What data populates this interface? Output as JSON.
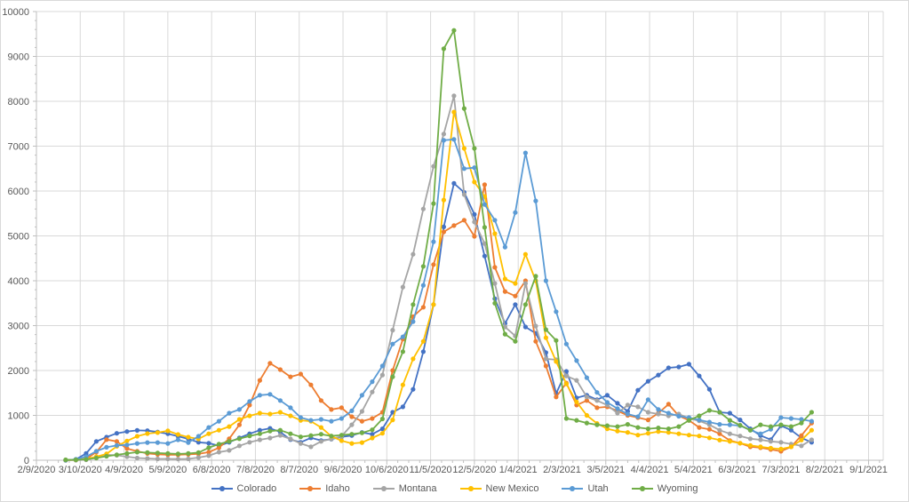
{
  "chart_data": {
    "type": "line",
    "title": "",
    "x": [
      "2/29/2020",
      "3/7/2020",
      "3/14/2020",
      "3/21/2020",
      "3/28/2020",
      "4/4/2020",
      "4/11/2020",
      "4/18/2020",
      "4/25/2020",
      "5/2/2020",
      "5/9/2020",
      "5/16/2020",
      "5/23/2020",
      "5/30/2020",
      "6/6/2020",
      "6/13/2020",
      "6/20/2020",
      "6/27/2020",
      "7/4/2020",
      "7/11/2020",
      "7/18/2020",
      "7/25/2020",
      "8/1/2020",
      "8/8/2020",
      "8/15/2020",
      "8/22/2020",
      "8/29/2020",
      "9/5/2020",
      "9/12/2020",
      "9/19/2020",
      "9/26/2020",
      "10/3/2020",
      "10/10/2020",
      "10/17/2020",
      "10/24/2020",
      "10/31/2020",
      "11/7/2020",
      "11/14/2020",
      "11/21/2020",
      "11/28/2020",
      "12/5/2020",
      "12/12/2020",
      "12/19/2020",
      "12/26/2020",
      "1/2/2021",
      "1/9/2021",
      "1/16/2021",
      "1/23/2021",
      "1/30/2021",
      "2/6/2021",
      "2/13/2021",
      "2/20/2021",
      "2/27/2021",
      "3/6/2021",
      "3/13/2021",
      "3/20/2021",
      "3/27/2021",
      "4/3/2021",
      "4/10/2021",
      "4/17/2021",
      "4/24/2021",
      "5/1/2021",
      "5/8/2021",
      "5/15/2021",
      "5/22/2021",
      "5/29/2021",
      "6/5/2021",
      "6/12/2021",
      "6/19/2021",
      "6/26/2021",
      "7/3/2021",
      "7/10/2021",
      "7/17/2021",
      "7/24/2021"
    ],
    "series": [
      {
        "name": "Colorado",
        "color": "#4472C4",
        "values": [
          0,
          20,
          150,
          420,
          515,
          600,
          640,
          665,
          660,
          630,
          590,
          535,
          475,
          400,
          380,
          320,
          400,
          500,
          590,
          670,
          710,
          630,
          460,
          400,
          500,
          440,
          470,
          520,
          550,
          620,
          580,
          700,
          1070,
          1190,
          1580,
          2420,
          3470,
          5200,
          6170,
          5970,
          5480,
          4550,
          3600,
          3050,
          3470,
          2970,
          2830,
          2400,
          1490,
          1980,
          1390,
          1450,
          1350,
          1450,
          1270,
          1090,
          1560,
          1760,
          1900,
          2060,
          2080,
          2140,
          1880,
          1580,
          1070,
          1050,
          900,
          700,
          550,
          460,
          770,
          670,
          500,
          400
        ]
      },
      {
        "name": "Idaho",
        "color": "#ED7D31",
        "values": [
          0,
          10,
          30,
          180,
          460,
          420,
          260,
          200,
          150,
          130,
          120,
          120,
          130,
          140,
          180,
          280,
          480,
          790,
          1230,
          1780,
          2160,
          2020,
          1860,
          1920,
          1680,
          1330,
          1130,
          1170,
          970,
          870,
          930,
          1070,
          2000,
          2700,
          3200,
          3410,
          4360,
          5090,
          5230,
          5350,
          4990,
          6140,
          4300,
          3760,
          3660,
          4000,
          2650,
          2100,
          1410,
          1720,
          1230,
          1330,
          1170,
          1190,
          1100,
          1000,
          950,
          900,
          1050,
          1250,
          990,
          890,
          730,
          690,
          590,
          440,
          380,
          300,
          280,
          240,
          200,
          300,
          550,
          830
        ]
      },
      {
        "name": "Montana",
        "color": "#A5A5A5",
        "values": [
          0,
          0,
          10,
          60,
          120,
          110,
          80,
          50,
          40,
          30,
          30,
          25,
          30,
          60,
          100,
          180,
          220,
          320,
          400,
          455,
          495,
          555,
          475,
          375,
          300,
          420,
          475,
          535,
          790,
          1090,
          1520,
          1900,
          2900,
          3860,
          4590,
          5600,
          6550,
          7270,
          8120,
          5920,
          5310,
          4830,
          3940,
          2970,
          2770,
          3940,
          2990,
          2260,
          2240,
          1880,
          1780,
          1410,
          1330,
          1230,
          1050,
          1230,
          1190,
          1070,
          1030,
          990,
          1030,
          930,
          880,
          790,
          670,
          590,
          540,
          480,
          455,
          420,
          400,
          360,
          320,
          455
        ]
      },
      {
        "name": "New Mexico",
        "color": "#FFC000",
        "values": [
          0,
          10,
          30,
          80,
          140,
          310,
          430,
          535,
          595,
          615,
          655,
          575,
          515,
          475,
          590,
          670,
          750,
          910,
          990,
          1050,
          1030,
          1070,
          990,
          890,
          870,
          730,
          535,
          435,
          375,
          395,
          495,
          600,
          900,
          1680,
          2260,
          2650,
          3470,
          5800,
          7760,
          6950,
          6200,
          5880,
          5050,
          4040,
          3940,
          4590,
          4000,
          2730,
          2200,
          1700,
          1300,
          1000,
          820,
          700,
          650,
          620,
          560,
          600,
          640,
          620,
          590,
          560,
          540,
          500,
          450,
          420,
          380,
          330,
          300,
          270,
          250,
          300,
          450,
          670
        ]
      },
      {
        "name": "Utah",
        "color": "#5B9BD5",
        "values": [
          0,
          20,
          80,
          200,
          290,
          330,
          340,
          375,
          395,
          395,
          375,
          455,
          395,
          535,
          730,
          870,
          1050,
          1130,
          1310,
          1450,
          1470,
          1330,
          1170,
          950,
          890,
          910,
          870,
          930,
          1100,
          1450,
          1750,
          2100,
          2590,
          2750,
          3090,
          3900,
          4870,
          7130,
          7150,
          6500,
          6520,
          5700,
          5350,
          4750,
          5520,
          6850,
          5780,
          4000,
          3310,
          2590,
          2220,
          1840,
          1510,
          1290,
          1150,
          1030,
          970,
          1350,
          1130,
          1050,
          980,
          950,
          900,
          850,
          800,
          790,
          770,
          670,
          590,
          690,
          950,
          930,
          910,
          870
        ]
      },
      {
        "name": "Wyoming",
        "color": "#70AD47",
        "values": [
          10,
          10,
          20,
          50,
          90,
          120,
          150,
          180,
          170,
          160,
          150,
          140,
          150,
          170,
          280,
          360,
          420,
          480,
          540,
          590,
          650,
          670,
          590,
          520,
          550,
          580,
          540,
          560,
          580,
          610,
          680,
          920,
          1860,
          2420,
          3470,
          4320,
          5720,
          9170,
          9580,
          7840,
          6950,
          5190,
          3500,
          2810,
          2650,
          3470,
          4100,
          2910,
          2670,
          930,
          890,
          830,
          790,
          770,
          750,
          800,
          730,
          700,
          720,
          700,
          750,
          890,
          990,
          1110,
          1070,
          890,
          780,
          670,
          790,
          750,
          790,
          750,
          830,
          1070
        ]
      }
    ],
    "x_axis": {
      "start_date": "2/9/2020",
      "tick_interval_days": 30,
      "minor_tick_days": 7.5,
      "tick_labels": [
        "2/9/2020",
        "3/10/2020",
        "4/9/2020",
        "5/9/2020",
        "6/8/2020",
        "7/8/2020",
        "8/7/2020",
        "9/6/2020",
        "10/6/2020",
        "11/5/2020",
        "12/5/2020",
        "1/4/2021",
        "2/3/2021",
        "3/5/2021",
        "4/4/2021",
        "5/4/2021",
        "6/3/2021",
        "7/3/2021",
        "8/2/2021",
        "9/1/2021"
      ]
    },
    "y_axis": {
      "min": 0,
      "max": 10000,
      "major_step": 1000,
      "minor_step": 200,
      "tick_labels": [
        "0",
        "1000",
        "2000",
        "3000",
        "4000",
        "5000",
        "6000",
        "7000",
        "8000",
        "9000",
        "10000"
      ]
    },
    "ylim": [
      0,
      10000
    ],
    "grid": true,
    "legend": {
      "position": "bottom",
      "entries": [
        "Colorado",
        "Idaho",
        "Montana",
        "New Mexico",
        "Utah",
        "Wyoming"
      ]
    },
    "style": {
      "background": "#FFFFFF",
      "gridline_color": "#D9D9D9",
      "axis_line_color": "#BFBFBF",
      "tick_label_color": "#595959",
      "line_width": 1.8,
      "marker_radius": 2.6
    }
  }
}
